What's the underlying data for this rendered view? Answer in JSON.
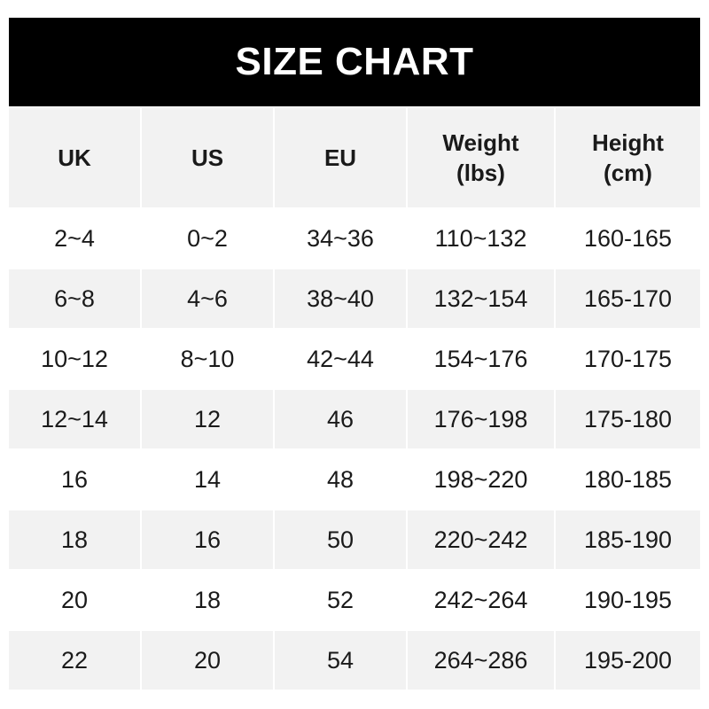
{
  "title": "SIZE CHART",
  "headers": [
    "UK",
    "US",
    "EU",
    "Weight\n(lbs)",
    "Height\n(cm)"
  ],
  "rows": [
    [
      "2~4",
      "0~2",
      "34~36",
      "110~132",
      "160-165"
    ],
    [
      "6~8",
      "4~6",
      "38~40",
      "132~154",
      "165-170"
    ],
    [
      "10~12",
      "8~10",
      "42~44",
      "154~176",
      "170-175"
    ],
    [
      "12~14",
      "12",
      "46",
      "176~198",
      "175-180"
    ],
    [
      "16",
      "14",
      "48",
      "198~220",
      "180-185"
    ],
    [
      "18",
      "16",
      "50",
      "220~242",
      "185-190"
    ],
    [
      "20",
      "18",
      "52",
      "242~264",
      "190-195"
    ],
    [
      "22",
      "20",
      "54",
      "264~286",
      "195-200"
    ]
  ],
  "colors": {
    "title_background": "#000000",
    "shaded_row": "#f2f2f2",
    "text": "#1a1a1a"
  }
}
